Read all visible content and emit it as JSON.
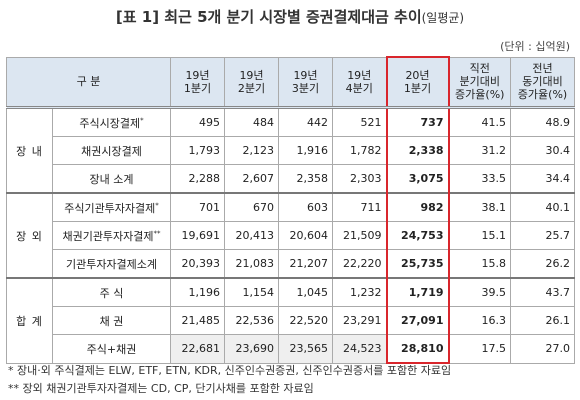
{
  "header": {
    "title": "[표 1] 최근 5개 분기 시장별 증권결제대금 추이",
    "title_note": "(일평균)",
    "unit": "(단위 : 십억원)"
  },
  "table": {
    "columns": [
      [
        "구 분"
      ],
      [
        "19년",
        "1분기"
      ],
      [
        "19년",
        "2분기"
      ],
      [
        "19년",
        "3분기"
      ],
      [
        "19년",
        "4분기"
      ],
      [
        "20년",
        "1분기"
      ],
      [
        "직전",
        "분기대비",
        "증가율(%)"
      ],
      [
        "전년",
        "동기대비",
        "증가율(%)"
      ]
    ],
    "groups": [
      {
        "label": "장 내",
        "rows": [
          {
            "label": "주식시장결제",
            "mark": "*",
            "cells": [
              "495",
              "484",
              "442",
              "521",
              "737",
              "41.5",
              "48.9"
            ]
          },
          {
            "label": "채권시장결제",
            "cells": [
              "1,793",
              "2,123",
              "1,916",
              "1,782",
              "2,338",
              "31.2",
              "30.4"
            ]
          },
          {
            "label": "장내 소계",
            "cells": [
              "2,288",
              "2,607",
              "2,358",
              "2,303",
              "3,075",
              "33.5",
              "34.4"
            ]
          }
        ]
      },
      {
        "label": "장 외",
        "rows": [
          {
            "label": "주식기관투자자결제",
            "mark": "*",
            "cells": [
              "701",
              "670",
              "603",
              "711",
              "982",
              "38.1",
              "40.1"
            ]
          },
          {
            "label": "채권기관투자자결제",
            "mark": "**",
            "cells": [
              "19,691",
              "20,413",
              "20,604",
              "21,509",
              "24,753",
              "15.1",
              "25.7"
            ]
          },
          {
            "label": "기관투자자결제소계",
            "cells": [
              "20,393",
              "21,083",
              "21,207",
              "22,220",
              "25,735",
              "15.8",
              "26.2"
            ]
          }
        ]
      },
      {
        "label": "합 계",
        "rows": [
          {
            "label": "주 식",
            "cells": [
              "1,196",
              "1,154",
              "1,045",
              "1,232",
              "1,719",
              "39.5",
              "43.7"
            ]
          },
          {
            "label": "채 권",
            "cells": [
              "21,485",
              "22,536",
              "22,520",
              "23,291",
              "27,091",
              "16.3",
              "26.1"
            ]
          },
          {
            "label": "주식+채권",
            "cells": [
              "22,681",
              "23,690",
              "23,565",
              "24,523",
              "28,810",
              "17.5",
              "27.0"
            ]
          }
        ]
      }
    ]
  },
  "footnotes": [
    "* 장내·외 주식결제는 ELW, ETF, ETN, KDR, 신주인수권증권, 신주인수권증서를 포함한 자료임",
    "** 장외 채권기관투자자결제는 CD, CP, 단기사채를 포함한 자료임"
  ]
}
